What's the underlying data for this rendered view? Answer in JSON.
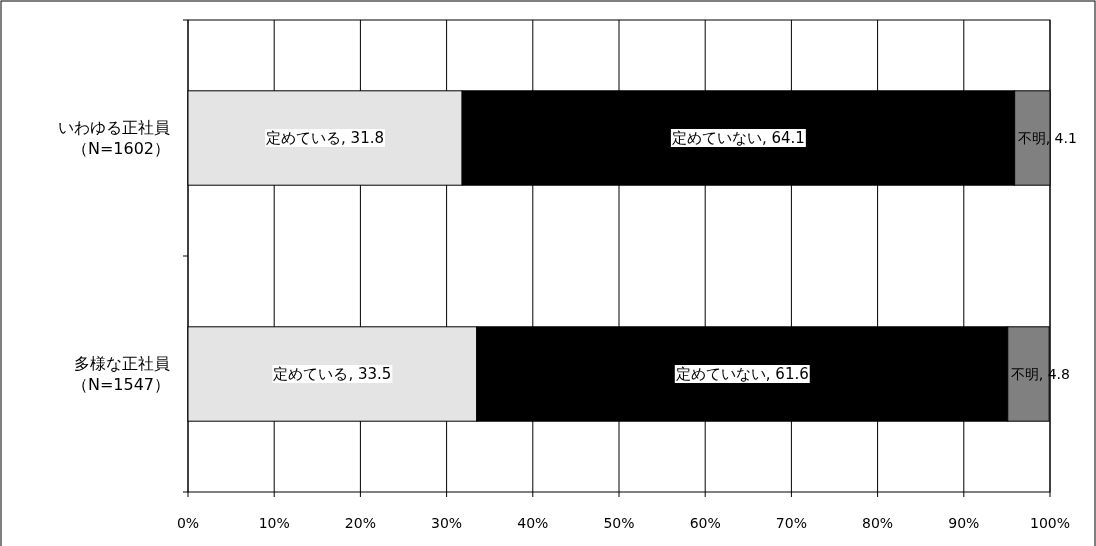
{
  "chart_data": {
    "type": "bar",
    "orientation": "horizontal",
    "stacked": true,
    "categories": [
      "いわゆる正社員（N=1602）",
      "多様な正社員（N=1547）"
    ],
    "series": [
      {
        "color": "#e4e4e4",
        "values": [
          31.8,
          33.5
        ],
        "value_labels": [
          "定めている, 31.8",
          "定めている, 33.5"
        ]
      },
      {
        "color": "#000000",
        "values": [
          64.1,
          61.6
        ],
        "value_labels": [
          "定めていない, 64.1",
          "定めていない, 61.6"
        ]
      },
      {
        "color": "#808080",
        "values": [
          4.1,
          4.8
        ],
        "value_labels": [
          "不明, 4.1",
          "不明, 4.8"
        ]
      }
    ],
    "xlim": [
      0,
      100
    ],
    "xticks": [
      {
        "value": 0,
        "label": "0%"
      },
      {
        "value": 10,
        "label": "10%"
      },
      {
        "value": 20,
        "label": "20%"
      },
      {
        "value": 30,
        "label": "30%"
      },
      {
        "value": 40,
        "label": "40%"
      },
      {
        "value": 50,
        "label": "50%"
      },
      {
        "value": 60,
        "label": "60%"
      },
      {
        "value": 70,
        "label": "70%"
      },
      {
        "value": 80,
        "label": "80%"
      },
      {
        "value": 90,
        "label": "90%"
      },
      {
        "value": 100,
        "label": "100%"
      }
    ],
    "grid": "x"
  }
}
